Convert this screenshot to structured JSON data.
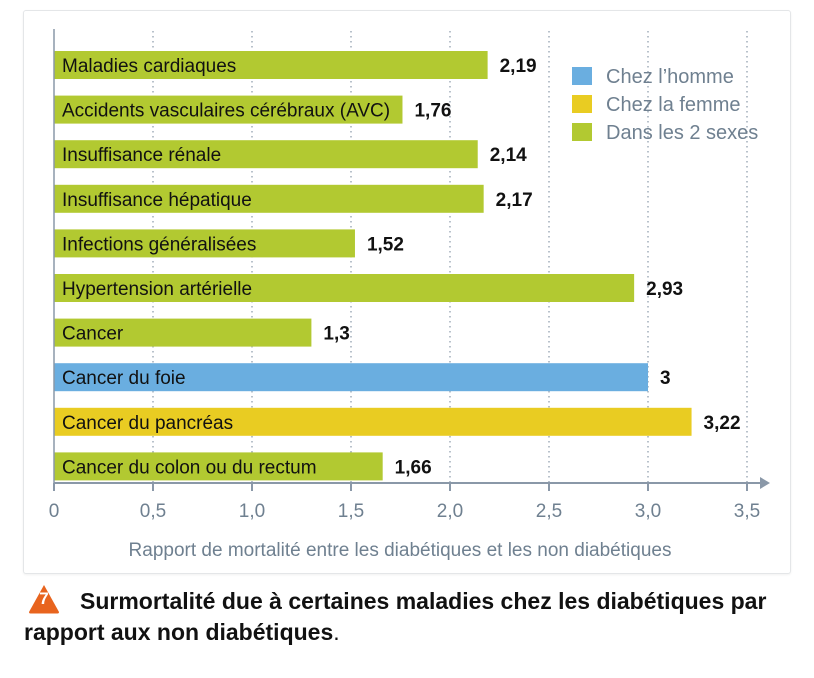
{
  "chart_data": {
    "type": "bar",
    "orientation": "horizontal",
    "categories": [
      "Maladies cardiaques",
      "Accidents vasculaires cérébraux (AVC)",
      "Insuffisance rénale",
      "Insuffisance hépatique",
      "Infections généralisées",
      "Hypertension artérielle",
      "Cancer",
      "Cancer du foie",
      "Cancer du pancréas",
      "Cancer du colon ou du rectum"
    ],
    "values": [
      2.19,
      1.76,
      2.14,
      2.17,
      1.52,
      2.93,
      1.3,
      3,
      3.22,
      1.66
    ],
    "value_labels": [
      "2,19",
      "1,76",
      "2,14",
      "2,17",
      "1,52",
      "2,93",
      "1,3",
      "3",
      "3,22",
      "1,66"
    ],
    "groups": [
      "both",
      "both",
      "both",
      "both",
      "both",
      "both",
      "both",
      "men",
      "women",
      "both"
    ],
    "legend": [
      {
        "key": "men",
        "label": "Chez l’homme",
        "color": "#6aaee0"
      },
      {
        "key": "women",
        "label": "Chez la femme",
        "color": "#e9cc22"
      },
      {
        "key": "both",
        "label": "Dans les 2 sexes",
        "color": "#b2c931"
      }
    ],
    "legend_position": "top-right",
    "xlabel": "Rapport de mortalité entre les diabétiques et les non diabétiques",
    "xlim": [
      0,
      3.5
    ],
    "xticks": [
      0,
      0.5,
      1,
      1.5,
      2,
      2.5,
      3,
      3.5
    ],
    "xtick_labels": [
      "0",
      "0,5",
      "1,0",
      "1,5",
      "2,0",
      "2,5",
      "3,0",
      "3,5"
    ],
    "grid": "vertical dotted"
  },
  "caption": {
    "badge_number": "7",
    "badge_color": "#e8641e",
    "text": "Surmortalité due à certaines maladies chez les diabétiques par rapport aux non diabétiques",
    "period": "."
  }
}
